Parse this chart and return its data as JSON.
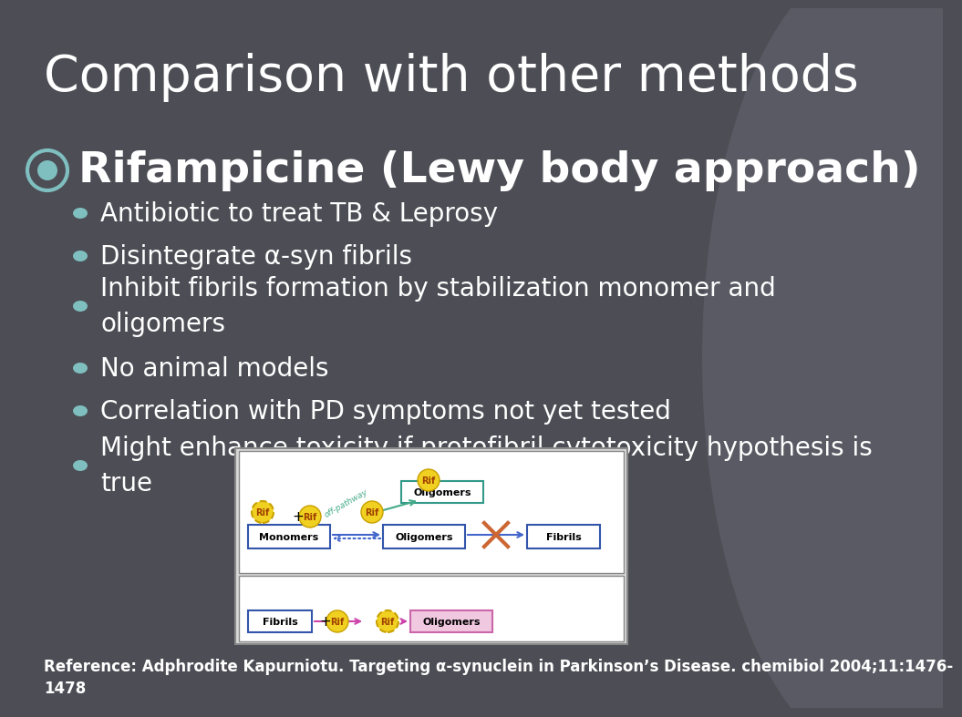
{
  "title": "Comparison with other methods",
  "subtitle": "Rifampicine (Lewy body approach)",
  "bullets": [
    "Antibiotic to treat TB & Leprosy",
    "Disintegrate α-syn fibrils",
    "Inhibit fibrils formation by stabilization monomer and\noligomers",
    "No animal models",
    "Correlation with PD symptoms not yet tested",
    "Might enhance toxicity if protofibril cytotoxicity hypothesis is\ntrue"
  ],
  "reference": "Reference: Adphrodite Kapurniotu. Targeting α-synuclein in Parkinson’s Disease. chemibiol 2004;11:1476-\n1478",
  "bg_color": "#4d4d55",
  "title_color": "#ffffff",
  "subtitle_color": "#ffffff",
  "bullet_color": "#ffffff",
  "bullet_dot_color": "#7fbfbf",
  "subtitle_dot_color": "#7fbfbf",
  "reference_color": "#ffffff",
  "title_fontsize": 40,
  "subtitle_fontsize": 34,
  "bullet_fontsize": 20,
  "reference_fontsize": 12,
  "ellipse_color": "#5a5a64"
}
